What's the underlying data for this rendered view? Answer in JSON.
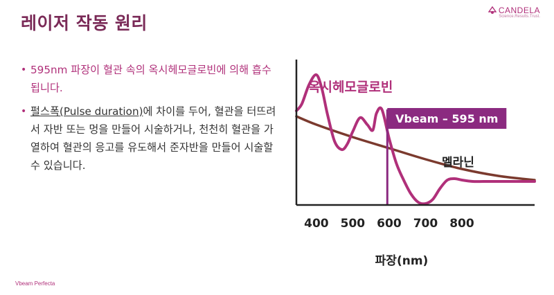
{
  "slide": {
    "title": "레이저 작동 원리",
    "bullet1": "595nm 파장이 혈관 속의 옥시헤모글로빈에 의해 흡수됩니다.",
    "bullet2_underlined": "펄스폭(Pulse duration)",
    "bullet2_rest": "에 차이를 두어, 혈관을 터뜨려서 자반 또는 멍을 만들어 시술하거나, 천천히 혈관을 가열하여 혈관의 응고를 유도해서 준자반을 만들어 시술할 수 있습니다.",
    "footer": "Vbeam Perfecta"
  },
  "brand": {
    "name": "CANDELA",
    "tagline": "Science.Results.Trust.",
    "color": "#b0307a"
  },
  "chart_data": {
    "type": "line",
    "xlabel": "파장(nm)",
    "xticks": [
      400,
      500,
      600,
      700,
      800
    ],
    "xlim": [
      345,
      1000
    ],
    "ylim": [
      0,
      100
    ],
    "series": [
      {
        "name": "옥시헤모글로빈",
        "color": "#b0307a",
        "x": [
          345,
          360,
          380,
          400,
          415,
          430,
          450,
          470,
          485,
          500,
          520,
          540,
          555,
          565,
          580,
          600,
          620,
          640,
          660,
          680,
          700,
          720,
          740,
          760,
          780,
          800,
          830,
          860,
          900,
          950,
          1000
        ],
        "y": [
          68,
          73,
          87,
          94,
          84,
          66,
          46,
          40,
          44,
          53,
          63,
          58,
          54,
          66,
          69,
          48,
          30,
          18,
          8,
          2,
          1,
          4,
          12,
          18,
          19,
          18,
          17,
          17,
          17,
          17,
          17
        ]
      },
      {
        "name": "멜라닌",
        "color": "#7b3a2e",
        "x": [
          345,
          400,
          500,
          600,
          700,
          800,
          900,
          1000
        ],
        "y": [
          64,
          58,
          49,
          41,
          33,
          26,
          21,
          18
        ]
      }
    ],
    "annotation": {
      "x": 595,
      "label": "Vbeam – 595 nm",
      "color": "#8b2a80"
    }
  }
}
